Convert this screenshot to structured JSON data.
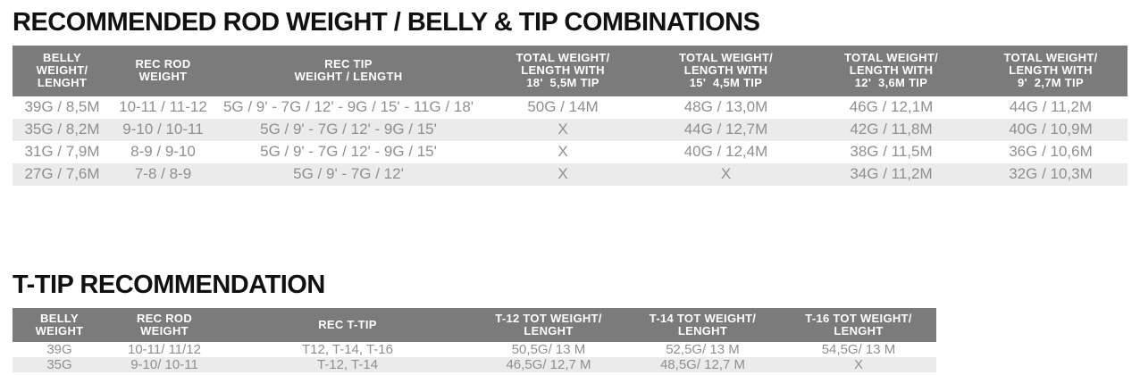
{
  "colors": {
    "header-bg": "#7b7b7b",
    "stripe-bg": "#ebebeb",
    "data-text": "#8f8f8f",
    "title-text": "#111111",
    "header-text": "#ffffff"
  },
  "tables": {
    "combinations": {
      "title": "RECOMMENDED ROD WEIGHT / BELLY & TIP COMBINATIONS",
      "columns": [
        "BELLY\nWEIGHT/\nLENGHT",
        "REC ROD\nWEIGHT",
        "REC TIP\nWEIGHT / LENGTH",
        "TOTAL WEIGHT/\nLENGTH WITH\n18'  5,5M TIP",
        "TOTAL WEIGHT/\nLENGTH WITH\n15'  4,5M TIP",
        "TOTAL WEIGHT/\nLENGTH WITH\n12'  3,6M TIP",
        "TOTAL WEIGHT/\nLENGTH WITH\n9'  2,7M TIP"
      ],
      "rows": [
        [
          "39G / 8,5M",
          "10-11 / 11-12",
          "5G / 9' - 7G / 12' - 9G / 15' - 11G / 18'",
          "50G / 14M",
          "48G / 13,0M",
          "46G / 12,1M",
          "44G / 11,2M"
        ],
        [
          "35G / 8,2M",
          "9-10 / 10-11",
          "5G / 9' - 7G / 12' - 9G / 15'",
          "X",
          "44G / 12,7M",
          "42G / 11,8M",
          "40G / 10,9M"
        ],
        [
          "31G / 7,9M",
          "8-9 / 9-10",
          "5G / 9' - 7G / 12' - 9G / 15'",
          "X",
          "40G / 12,4M",
          "38G / 11,5M",
          "36G / 10,6M"
        ],
        [
          "27G / 7,6M",
          "7-8 / 8-9",
          "5G / 9' - 7G / 12'",
          "X",
          "X",
          "34G / 11,2M",
          "32G / 10,3M"
        ]
      ]
    },
    "ttip": {
      "title": "T-TIP RECOMMENDATION",
      "columns": [
        "BELLY\nWEIGHT",
        "REC ROD\nWEIGHT",
        "REC T-TIP",
        "T-12 TOT WEIGHT/\nLENGHT",
        "T-14 TOT WEIGHT/\nLENGHT",
        "T-16 TOT WEIGHT/\nLENGHT"
      ],
      "rows": [
        [
          "39G",
          "10-11/ 11/12",
          "T12, T-14, T-16",
          "50,5G/ 13 M",
          "52,5G/ 13 M",
          "54,5G/ 13 M"
        ],
        [
          "35G",
          "9-10/ 10-11",
          "T-12, T-14",
          "46,5G/ 12,7 M",
          "48,5G/ 12,7 M",
          "X"
        ]
      ]
    }
  }
}
